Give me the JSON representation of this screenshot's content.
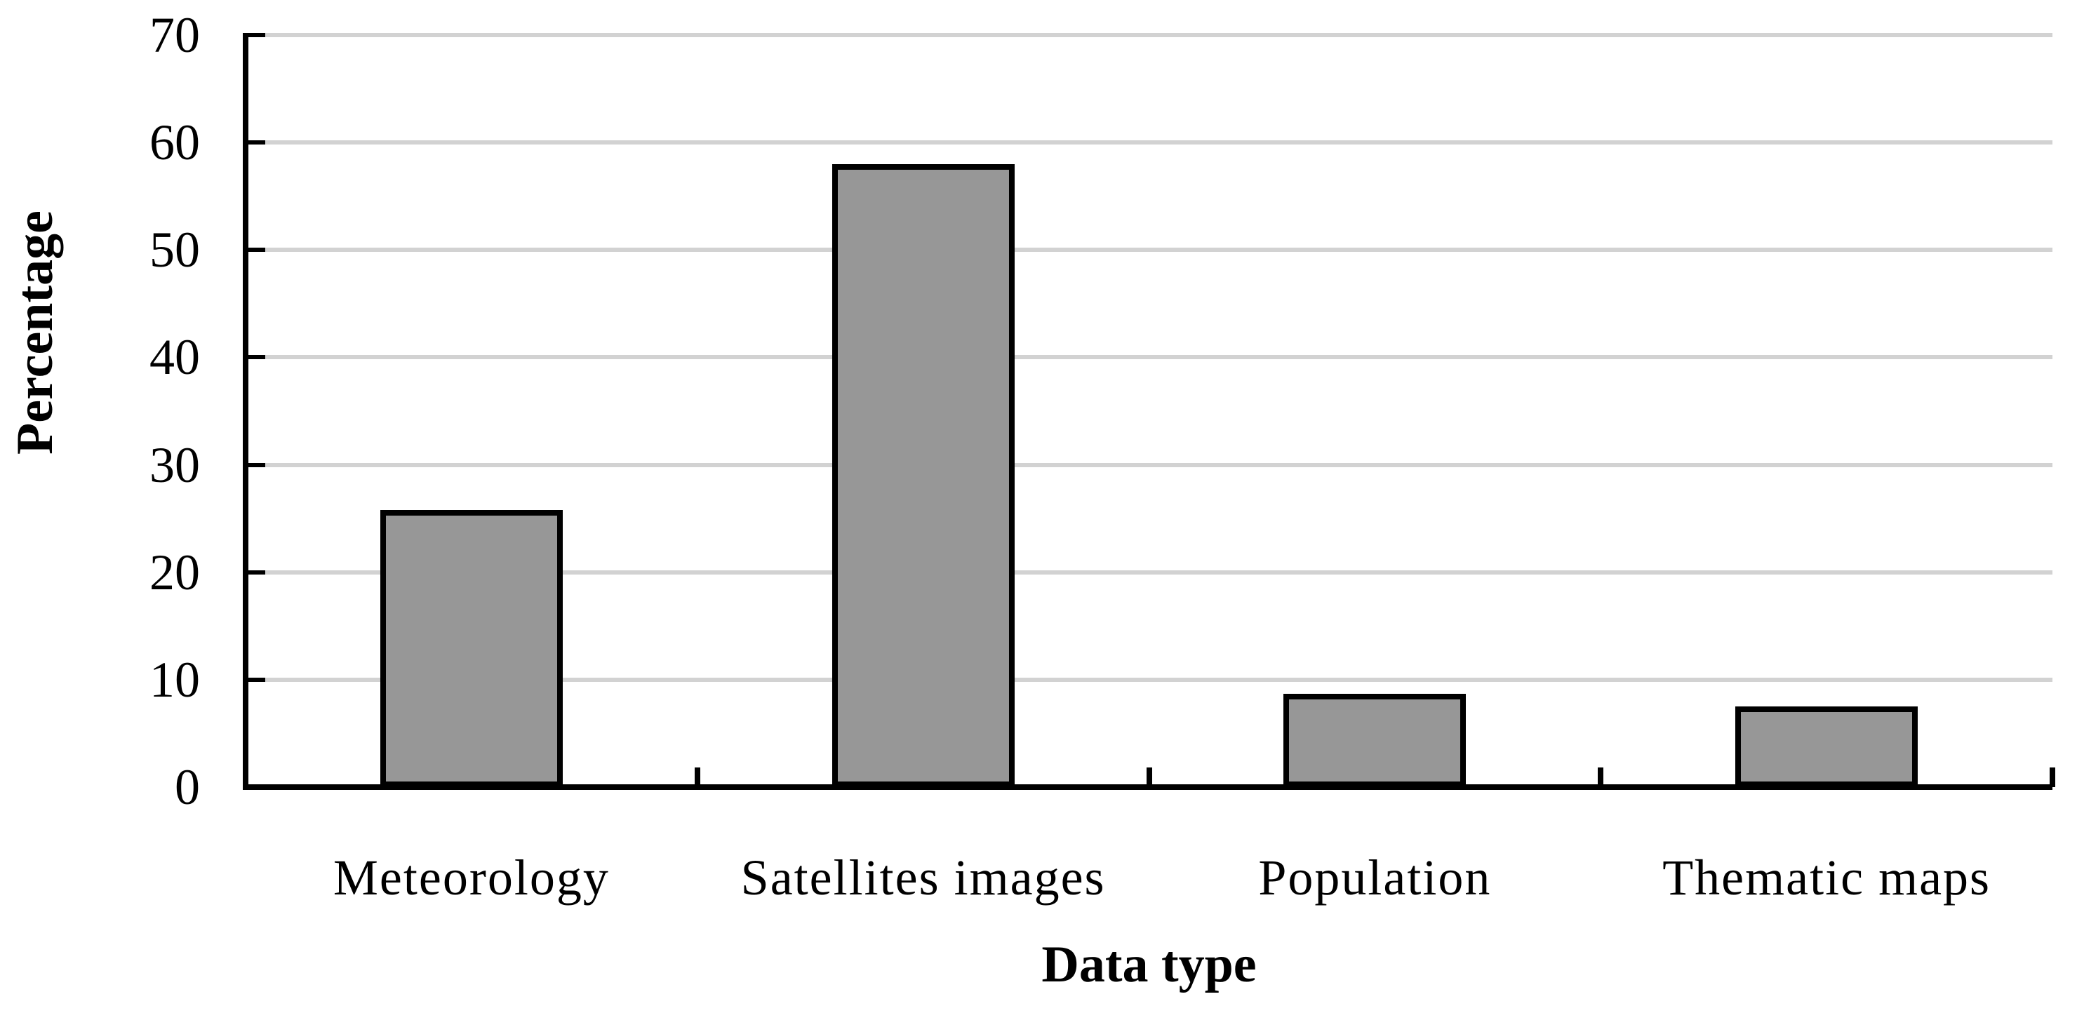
{
  "chart_data": {
    "type": "bar",
    "title": "",
    "categories": [
      "Meteorology",
      "Satellites images",
      "Population",
      "Thematic maps"
    ],
    "values": [
      25.8,
      58,
      8.7,
      7.5
    ],
    "xlabel": "Data type",
    "ylabel": "Percentage",
    "ylim": [
      0,
      70
    ],
    "ytick_step": 10,
    "ytick_labels": [
      "0",
      "10",
      "20",
      "30",
      "40",
      "50",
      "60",
      "70"
    ],
    "grid": "horizontal",
    "legend": "none",
    "bar_fill_color": "#979797",
    "bar_border_color": "#000000",
    "gridline_color": "#d2d2d2",
    "axis_color": "#000000",
    "background_color": "#ffffff"
  }
}
